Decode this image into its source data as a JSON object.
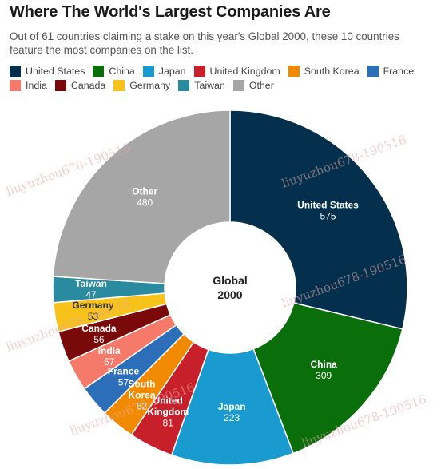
{
  "header": {
    "title": "Where The World's Largest Companies Are",
    "subtitle": "Out of 61 countries claiming a stake on this year's Global 2000, these 10 countries feature the most companies on the list."
  },
  "watermark_text": "liuyuzhou678-190516",
  "chart_data": {
    "type": "pie",
    "donut": true,
    "center_label": [
      "Global",
      "2000"
    ],
    "legend_position": "top",
    "slices": [
      {
        "name": "United States",
        "label_lines": [
          "United States"
        ],
        "value": 575,
        "color": "#04304d",
        "label_color": "#ffffff"
      },
      {
        "name": "China",
        "label_lines": [
          "China"
        ],
        "value": 309,
        "color": "#0a6e0a",
        "label_color": "#ffffff"
      },
      {
        "name": "Japan",
        "label_lines": [
          "Japan"
        ],
        "value": 223,
        "color": "#1a9bd0",
        "label_color": "#ffffff"
      },
      {
        "name": "United Kingdom",
        "label_lines": [
          "United",
          "Kingdom"
        ],
        "value": 81,
        "color": "#c8202a",
        "label_color": "#ffffff"
      },
      {
        "name": "South Korea",
        "label_lines": [
          "South",
          "Korea"
        ],
        "value": 62,
        "color": "#f28a00",
        "label_color": "#ffffff"
      },
      {
        "name": "France",
        "label_lines": [
          "France"
        ],
        "value": 57,
        "color": "#2c6fb8",
        "label_color": "#ffffff"
      },
      {
        "name": "India",
        "label_lines": [
          "India"
        ],
        "value": 57,
        "color": "#f57a6a",
        "label_color": "#ffffff"
      },
      {
        "name": "Canada",
        "label_lines": [
          "Canada"
        ],
        "value": 56,
        "color": "#7a0a0a",
        "label_color": "#ffffff"
      },
      {
        "name": "Germany",
        "label_lines": [
          "Germany"
        ],
        "value": 53,
        "color": "#f7c21a",
        "label_color": "#333333"
      },
      {
        "name": "Taiwan",
        "label_lines": [
          "Taiwan"
        ],
        "value": 47,
        "color": "#2a8aa0",
        "label_color": "#ffffff"
      },
      {
        "name": "Other",
        "label_lines": [
          "Other"
        ],
        "value": 480,
        "color": "#a6a6a6",
        "label_color": "#ffffff"
      }
    ]
  }
}
